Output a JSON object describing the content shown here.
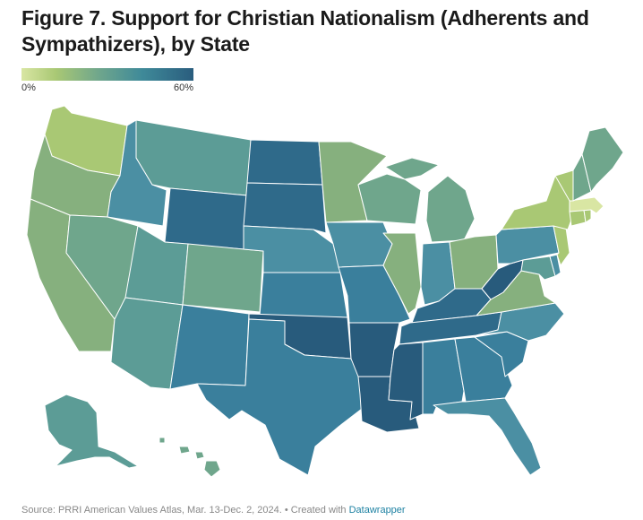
{
  "title": "Figure 7. Support for Christian Nationalism (Adherents and Sympathizers), by State",
  "legend": {
    "min_label": "0%",
    "max_label": "60%"
  },
  "colors": {
    "low": "#d9e6a3",
    "light_green": "#a9c874",
    "green_teal": "#86b07e",
    "sage": "#6fa68c",
    "teal": "#5c9c96",
    "blue_teal": "#4b8fa3",
    "blue": "#3a7f9c",
    "dark_blue": "#2f6a8a",
    "darkest": "#285b7c"
  },
  "footer": {
    "source": "Source: PRRI American Values Atlas, Mar. 13-Dec. 2, 2024. • Created with ",
    "link": "Datawrapper"
  }
}
